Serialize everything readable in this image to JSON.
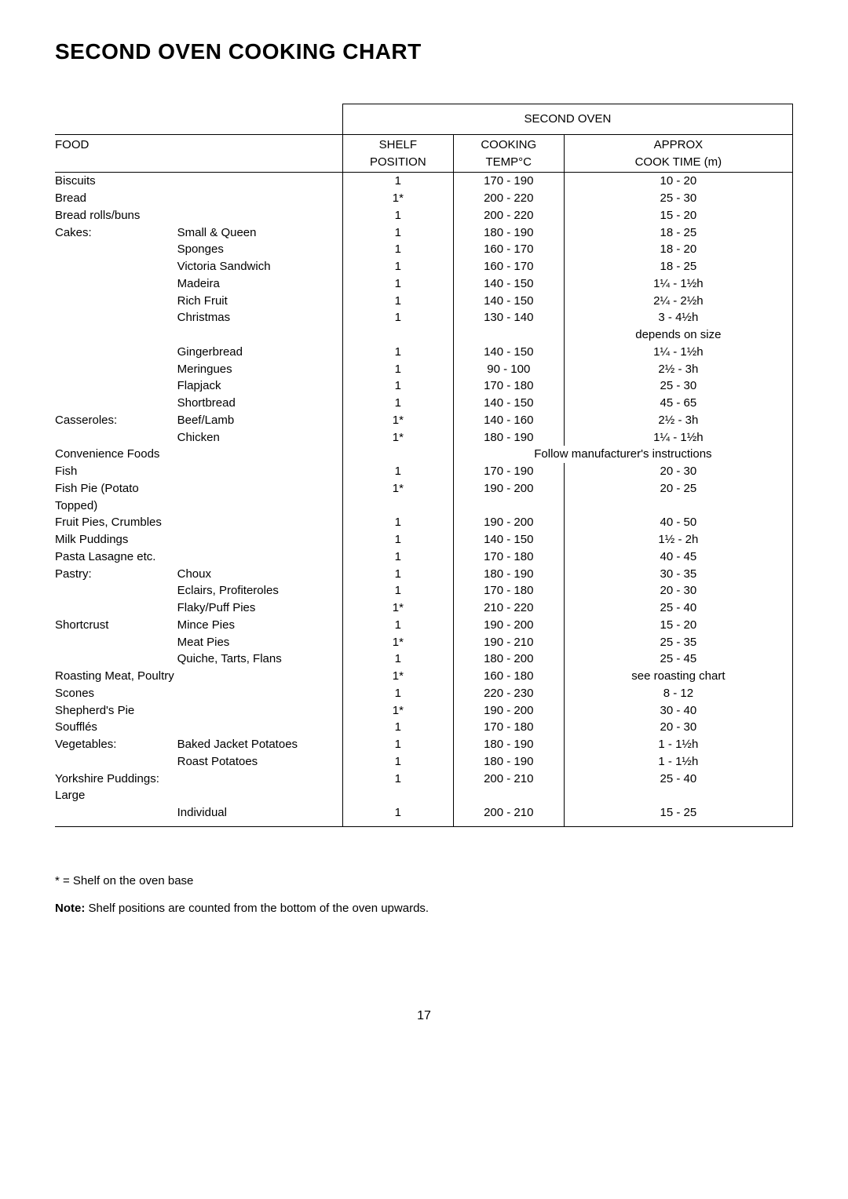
{
  "title": "SECOND OVEN COOKING CHART",
  "table_header": "SECOND OVEN",
  "col_food": "FOOD",
  "col_shelf1": "SHELF",
  "col_shelf2": "POSITION",
  "col_temp1": "COOKING",
  "col_temp2": "TEMP°C",
  "col_time1": "APPROX",
  "col_time2": "COOK TIME (m)",
  "rows": [
    {
      "f1": "Biscuits",
      "f2": "",
      "s": "1",
      "t": "170 - 190",
      "c": "10 - 20"
    },
    {
      "f1": "Bread",
      "f2": "",
      "s": "1*",
      "t": "200 - 220",
      "c": "25 - 30"
    },
    {
      "f1": "Bread rolls/buns",
      "f2": "",
      "s": "1",
      "t": "200 - 220",
      "c": "15 - 20"
    },
    {
      "f1": "Cakes:",
      "f2": "Small & Queen",
      "s": "1",
      "t": "180 - 190",
      "c": "18 - 25"
    },
    {
      "f1": "",
      "f2": "Sponges",
      "s": "1",
      "t": "160 - 170",
      "c": "18 - 20"
    },
    {
      "f1": "",
      "f2": "Victoria Sandwich",
      "s": "1",
      "t": "160 - 170",
      "c": "18 - 25"
    },
    {
      "f1": "",
      "f2": "Madeira",
      "s": "1",
      "t": "140 - 150",
      "c": "1¼ - 1½h"
    },
    {
      "f1": "",
      "f2": "Rich Fruit",
      "s": "1",
      "t": "140 - 150",
      "c": "2¼ - 2½h"
    },
    {
      "f1": "",
      "f2": "Christmas",
      "s": "1",
      "t": "130 - 140",
      "c": "3 - 4½h"
    },
    {
      "f1": "",
      "f2": "",
      "s": "",
      "t": "",
      "c": "depends on size"
    },
    {
      "f1": "",
      "f2": "Gingerbread",
      "s": "1",
      "t": "140 - 150",
      "c": "1¼ - 1½h"
    },
    {
      "f1": "",
      "f2": "Meringues",
      "s": "1",
      "t": "  90 - 100",
      "c": "2½ - 3h"
    },
    {
      "f1": "",
      "f2": "Flapjack",
      "s": "1",
      "t": "170 - 180",
      "c": "25 - 30"
    },
    {
      "f1": "",
      "f2": "Shortbread",
      "s": "1",
      "t": "140 - 150",
      "c": "45 - 65"
    },
    {
      "f1": "Casseroles:",
      "f2": "Beef/Lamb",
      "s": "1*",
      "t": "140 - 160",
      "c": "2½ - 3h"
    },
    {
      "f1": "",
      "f2": "Chicken",
      "s": "1*",
      "t": "180 - 190",
      "c": "1¼ - 1½h"
    }
  ],
  "conv_label": "Convenience Foods",
  "conv_follow": "Follow manufacturer's instructions",
  "rows2": [
    {
      "f1": "Fish",
      "f2": "",
      "s": "1",
      "t": "170 - 190",
      "c": "20 - 30"
    },
    {
      "f1": "Fish Pie (Potato Topped)",
      "f2": "",
      "s": "1*",
      "t": "190 - 200",
      "c": "20 - 25"
    },
    {
      "f1": "Fruit Pies, Crumbles",
      "f2": "",
      "s": "1",
      "t": "190 - 200",
      "c": "40 - 50"
    },
    {
      "f1": "Milk Puddings",
      "f2": "",
      "s": "1",
      "t": "140 - 150",
      "c": "1½ - 2h"
    },
    {
      "f1": "Pasta Lasagne etc.",
      "f2": "",
      "s": "1",
      "t": "170 - 180",
      "c": "40 - 45"
    },
    {
      "f1": "Pastry:",
      "f2": "Choux",
      "s": "1",
      "t": "180 - 190",
      "c": "30 - 35"
    },
    {
      "f1": "",
      "f2": "Eclairs, Profiteroles",
      "s": "1",
      "t": "170 - 180",
      "c": "20 - 30"
    },
    {
      "f1": "",
      "f2": "Flaky/Puff Pies",
      "s": "1*",
      "t": "210 - 220",
      "c": "25 - 40"
    },
    {
      "f1": "Shortcrust",
      "f2": "Mince Pies",
      "s": "1",
      "t": "190 - 200",
      "c": "15 - 20"
    },
    {
      "f1": "",
      "f2": "Meat Pies",
      "s": "1*",
      "t": "190 - 210",
      "c": "25 - 35"
    },
    {
      "f1": "",
      "f2": "Quiche, Tarts, Flans",
      "s": "1",
      "t": "180 - 200",
      "c": "25 - 45"
    },
    {
      "f1": "Roasting Meat, Poultry",
      "f2": "",
      "s": "1*",
      "t": "160 - 180",
      "c": "see roasting chart"
    },
    {
      "f1": "Scones",
      "f2": "",
      "s": "1",
      "t": "220 - 230",
      "c": "8 - 12"
    },
    {
      "f1": "Shepherd's Pie",
      "f2": "",
      "s": "1*",
      "t": "190 - 200",
      "c": "30 - 40"
    },
    {
      "f1": "Soufflés",
      "f2": "",
      "s": "1",
      "t": "170 - 180",
      "c": "20 - 30"
    },
    {
      "f1": "Vegetables:",
      "f2": "Baked Jacket Potatoes",
      "s": "1",
      "t": "180 - 190",
      "c": "1 - 1½h"
    },
    {
      "f1": "",
      "f2": "Roast Potatoes",
      "s": "1",
      "t": "180 - 190",
      "c": "1 - 1½h"
    },
    {
      "f1": "Yorkshire Puddings:  Large",
      "f2": "",
      "s": "1",
      "t": "200 - 210",
      "c": "25 - 40"
    },
    {
      "f1": "",
      "f2": "Individual",
      "s": "1",
      "t": "200 - 210",
      "c": "15 - 25"
    }
  ],
  "footnote": "* = Shelf on the oven base",
  "note_bold": "Note:",
  "note_rest": " Shelf positions are counted from the bottom of the oven upwards.",
  "page": "17"
}
